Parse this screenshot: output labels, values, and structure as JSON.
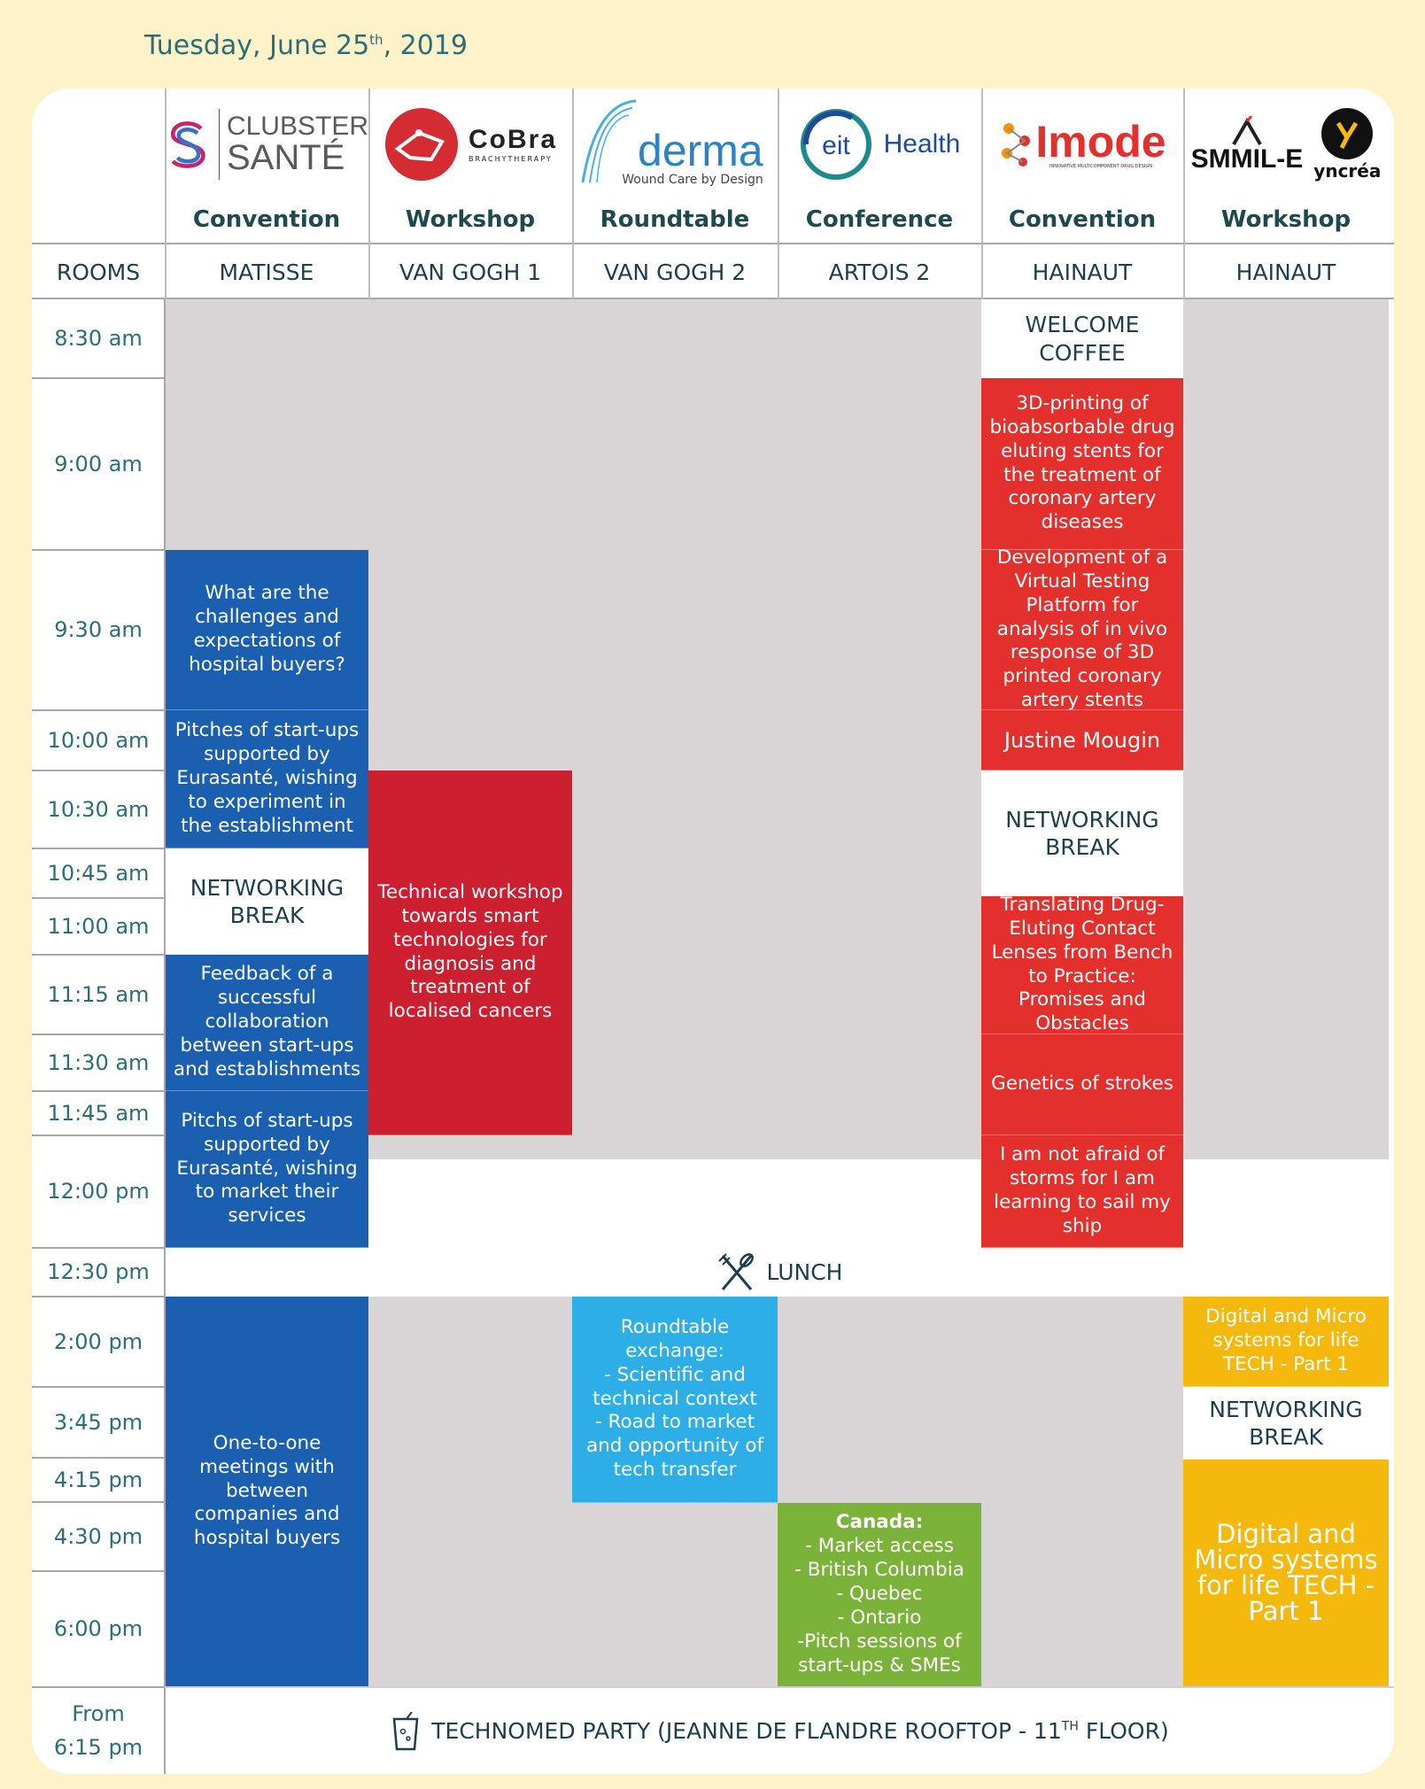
{
  "date": {
    "weekday_month": "Tuesday, June 25",
    "sup": "th",
    "year": ", 2019"
  },
  "rooms_label": "ROOMS",
  "columns": [
    {
      "logo_name": "CLUBSTER SANTÉ",
      "logo_line1": "CLUBSTER",
      "logo_line2": "SANTÉ",
      "type": "Convention",
      "room": "MATISSE"
    },
    {
      "logo_name": "CoBra",
      "logo_sub": "BRACHYTHERAPY",
      "type": "Workshop",
      "room": "VAN GOGH 1"
    },
    {
      "logo_name": "derma",
      "logo_sub": "Wound Care by Design",
      "type": "Roundtable",
      "room": "VAN GOGH 2"
    },
    {
      "logo_name": "eit",
      "logo_sub": "Health",
      "type": "Conference",
      "room": "ARTOIS 2"
    },
    {
      "logo_name": "Imode",
      "logo_sub": "INNOVATIVE MULTICOMPONENT DRUG DESIGN",
      "type": "Convention",
      "room": "HAINAUT"
    },
    {
      "logo_name": "SMMIL-E",
      "logo_sub": "yncréa",
      "type": "Workshop",
      "room": "HAINAUT"
    }
  ],
  "times": [
    "8:30 am",
    "9:00 am",
    "9:30 am",
    "10:00 am",
    "10:30 am",
    "10:45 am",
    "11:00 am",
    "11:15 am",
    "11:30 am",
    "11:45 am",
    "12:00 pm",
    "12:30 pm",
    "2:00 pm",
    "3:45 pm",
    "4:15 pm",
    "4:30 pm",
    "6:00 pm",
    "From\n6:15 pm"
  ],
  "sessions": {
    "matisse_1": "What are the challenges and expectations of hospital buyers?",
    "matisse_2": "Pitches of start-ups supported by Eurasanté, wishing to experiment in the establishment",
    "matisse_break": "NETWORKING\nBREAK",
    "matisse_3": "Feedback of a successful collaboration between start-ups and establishments",
    "matisse_4": "Pitchs of start-ups supported by Eurasanté, wishing to market their services",
    "matisse_5": "One-to-one meetings with between companies and hospital buyers",
    "vangogh1_1": "Technical workshop towards smart technologies for diagnosis and treatment of localised cancers",
    "vangogh2_1": "Roundtable exchange:\n- Scientific and technical context\n- Road to market and opportunity of tech transfer",
    "artois_title": "Canada:",
    "artois_1": "- Market access\n- British Columbia\n- Quebec\n- Ontario\n-Pitch sessions of start-ups & SMEs",
    "imode_welcome": "WELCOME\nCOFFEE",
    "imode_1": "3D-printing of bioabsorbable drug eluting stents for the treatment of coronary artery diseases",
    "imode_2": "Development of a Virtual Testing Platform for analysis of in vivo response of 3D printed coronary artery stents",
    "imode_3": "Justine Mougin",
    "imode_break": "NETWORKING\nBREAK",
    "imode_4": "Translating Drug-Eluting Contact Lenses from Bench to Practice: Promises and Obstacles",
    "imode_5": "Genetics of strokes",
    "imode_6": "I am not afraid of storms for I am learning to sail my ship",
    "smmile_1": "Digital and Micro systems for life TECH - Part 1",
    "smmile_break": "NETWORKING\nBREAK",
    "smmile_2": "Digital and Micro systems for life TECH - Part 1"
  },
  "lunch": "LUNCH",
  "party": {
    "text": "TECHNOMED PARTY (JEANNE DE FLANDRE ROOFTOP - 11",
    "sup": "TH",
    "end": " FLOOR)"
  },
  "colors": {
    "blue": "#1b5fb0",
    "red": "#e4302c",
    "crimson": "#cc1f2f",
    "cyan": "#2eaee6",
    "green": "#7bb23a",
    "yellow": "#f5b90d",
    "grey": "#d9d5d6",
    "teal_text": "#2c6e78"
  }
}
